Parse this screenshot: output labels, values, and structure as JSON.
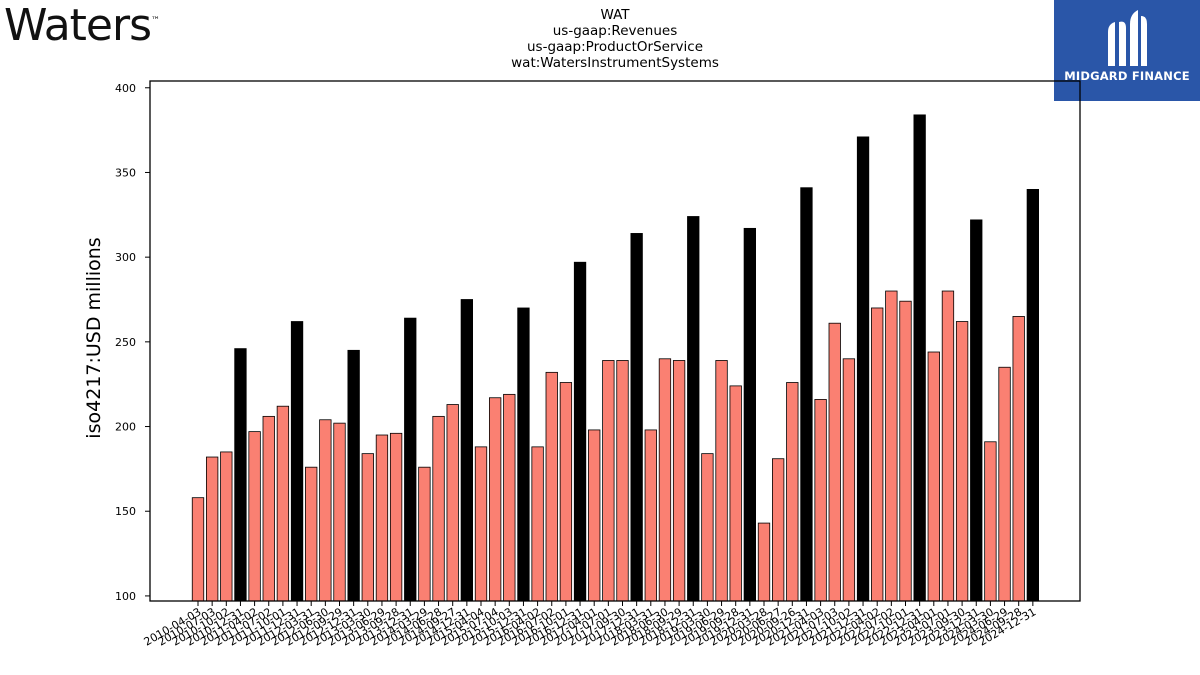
{
  "brand": {
    "left_logo": "Waters",
    "left_tm": "™",
    "right_logo": "MIDGARD FINANCE"
  },
  "title_lines": [
    "WAT",
    "us-gaap:Revenues",
    "us-gaap:ProductOrService",
    "wat:WatersInstrumentSystems"
  ],
  "colors": {
    "quarter_bar": "#fa8072",
    "annual_bar": "#000000",
    "brand_blue": "#2a56a8"
  },
  "chart_data": {
    "type": "bar",
    "ylabel": "iso4217:USD  millions",
    "ylim": [
      97,
      404
    ],
    "yticks": [
      100,
      150,
      200,
      250,
      300,
      350,
      400
    ],
    "categories": [
      "2010-04-03",
      "2010-07-03",
      "2010-10-02",
      "2010-12-31",
      "2011-04-02",
      "2011-07-02",
      "2011-10-01",
      "2011-12-31",
      "2012-03-31",
      "2012-06-30",
      "2012-09-29",
      "2012-12-31",
      "2013-03-30",
      "2013-06-29",
      "2013-09-28",
      "2013-12-31",
      "2014-03-29",
      "2014-06-28",
      "2014-09-27",
      "2014-12-31",
      "2015-04-04",
      "2015-07-04",
      "2015-10-03",
      "2015-12-31",
      "2016-04-02",
      "2016-07-02",
      "2016-10-01",
      "2016-12-31",
      "2017-04-01",
      "2017-07-01",
      "2017-09-30",
      "2017-12-31",
      "2018-03-31",
      "2018-06-30",
      "2018-09-29",
      "2018-12-31",
      "2019-03-30",
      "2019-06-29",
      "2019-09-28",
      "2019-12-31",
      "2020-03-28",
      "2020-06-27",
      "2020-09-26",
      "2020-12-31",
      "2021-04-03",
      "2021-07-03",
      "2021-10-02",
      "2021-12-31",
      "2022-04-02",
      "2022-07-02",
      "2022-10-01",
      "2022-12-31",
      "2023-04-01",
      "2023-07-01",
      "2023-09-30",
      "2023-12-31",
      "2024-03-30",
      "2024-06-29",
      "2024-09-28",
      "2024-12-31"
    ],
    "values": [
      158,
      182,
      185,
      246,
      197,
      206,
      212,
      262,
      176,
      204,
      202,
      245,
      184,
      195,
      196,
      264,
      176,
      206,
      213,
      275,
      188,
      217,
      219,
      270,
      188,
      232,
      226,
      297,
      198,
      239,
      239,
      314,
      198,
      240,
      239,
      324,
      184,
      239,
      224,
      317,
      143,
      181,
      226,
      341,
      216,
      261,
      240,
      371,
      270,
      280,
      274,
      384,
      244,
      280,
      262,
      322,
      191,
      235,
      265,
      340
    ],
    "annual_flags": [
      0,
      0,
      0,
      1,
      0,
      0,
      0,
      1,
      0,
      0,
      0,
      1,
      0,
      0,
      0,
      1,
      0,
      0,
      0,
      1,
      0,
      0,
      0,
      1,
      0,
      0,
      0,
      1,
      0,
      0,
      0,
      1,
      0,
      0,
      0,
      1,
      0,
      0,
      0,
      1,
      0,
      0,
      0,
      1,
      0,
      0,
      0,
      1,
      0,
      0,
      0,
      1,
      0,
      0,
      0,
      1,
      0,
      0,
      0,
      1
    ]
  }
}
